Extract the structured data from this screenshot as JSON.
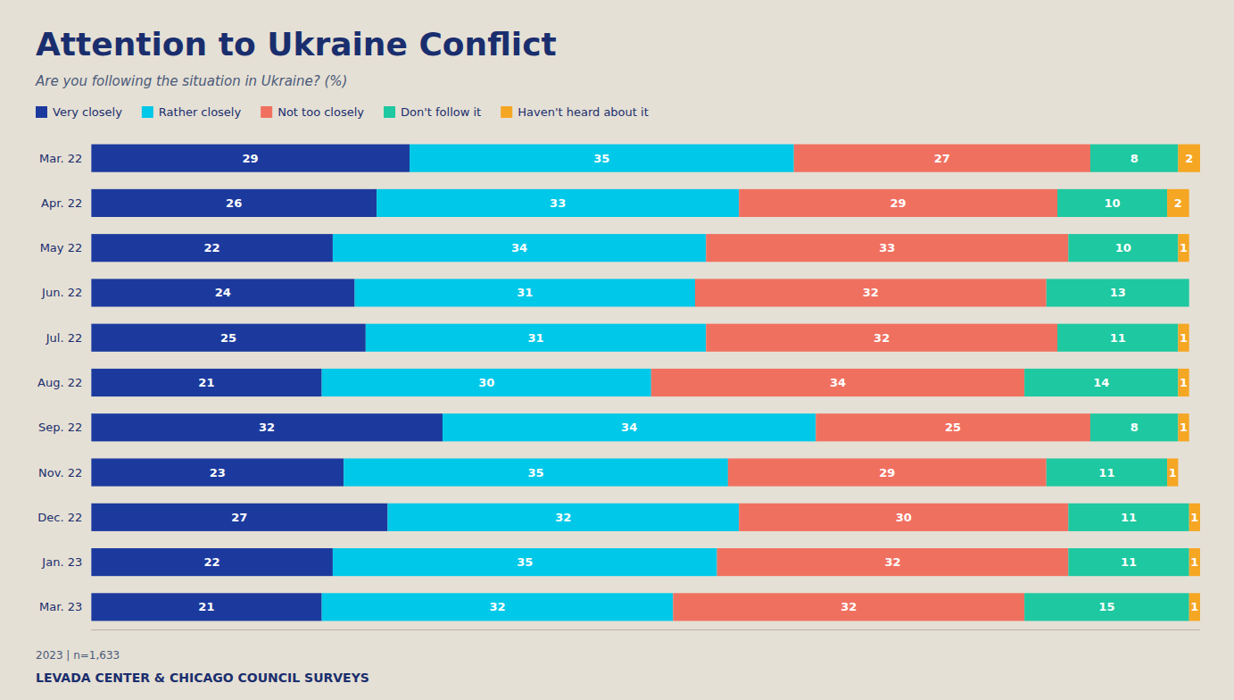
{
  "chart_data": {
    "type": "bar",
    "orientation": "horizontal",
    "stacked": true,
    "data_labels": true,
    "tick_labels": "y",
    "grid": false,
    "legend": "top-left",
    "title": "Attention to Ukraine Conflict",
    "subtitle": "Are you following the situation in Ukraine? (%)",
    "annotations": [
      "2023 | n=1,633",
      "LEVADA CENTER & CHICAGO COUNCIL SURVEYS"
    ],
    "categories": [
      "Mar. 22",
      "Apr. 22",
      "May 22",
      "Jun. 22",
      "Jul. 22",
      "Aug. 22",
      "Sep. 22",
      "Nov. 22",
      "Dec. 22",
      "Jan. 23",
      "Mar. 23"
    ],
    "xlim": [
      0,
      101
    ],
    "xticks": [],
    "series": [
      {
        "name": "Very closely",
        "color": "#1c3a9e",
        "values": [
          29,
          26,
          22,
          24,
          25,
          21,
          32,
          23,
          27,
          22,
          21
        ]
      },
      {
        "name": "Rather closely",
        "color": "#00c8e8",
        "values": [
          35,
          33,
          34,
          31,
          31,
          30,
          34,
          35,
          32,
          35,
          32
        ]
      },
      {
        "name": "Not too closely",
        "color": "#f07060",
        "values": [
          27,
          29,
          33,
          32,
          32,
          34,
          25,
          29,
          30,
          32,
          32
        ]
      },
      {
        "name": "Don't follow it",
        "color": "#1ec8a0",
        "values": [
          8,
          10,
          10,
          13,
          11,
          14,
          8,
          11,
          11,
          11,
          15
        ]
      },
      {
        "name": "Haven't heard about it",
        "color": "#f5a623",
        "values": [
          2,
          2,
          1,
          0,
          1,
          1,
          1,
          1,
          1,
          1,
          1
        ]
      }
    ]
  }
}
